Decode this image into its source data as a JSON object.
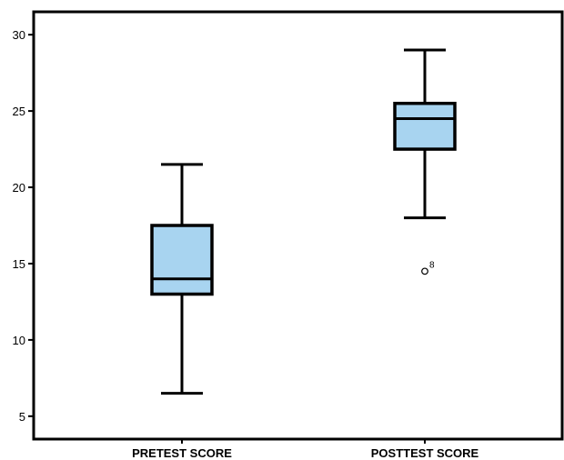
{
  "chart_data": {
    "type": "boxplot",
    "title": "",
    "xlabel": "",
    "ylabel": "",
    "categories": [
      "PRETEST SCORE",
      "POSTTEST SCORE"
    ],
    "ylim": [
      3.5,
      31.5
    ],
    "yticks": [
      5,
      10,
      15,
      20,
      25,
      30
    ],
    "box_color": "#a8d4f0",
    "series": [
      {
        "category": "PRETEST SCORE",
        "whisker_low": 6.5,
        "q1": 13,
        "median": 14,
        "q3": 17.5,
        "whisker_high": 21.5,
        "outliers": []
      },
      {
        "category": "POSTTEST SCORE",
        "whisker_low": 18,
        "q1": 22.5,
        "median": 24.5,
        "q3": 25.5,
        "whisker_high": 29,
        "outliers": [
          {
            "value": 14.5,
            "label": "8"
          }
        ]
      }
    ],
    "grid": false
  }
}
